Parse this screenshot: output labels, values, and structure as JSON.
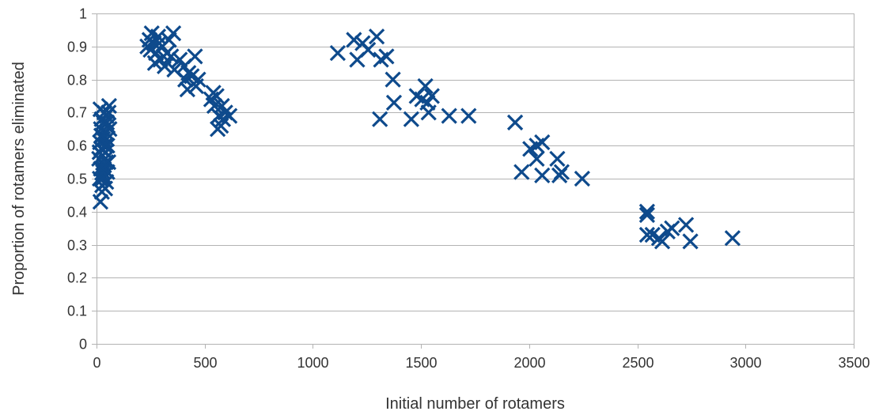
{
  "chart_data": {
    "type": "scatter",
    "title": "",
    "xlabel": "Initial number of rotamers",
    "ylabel": "Proportion of rotamers eliminated",
    "xlim": [
      0,
      3500
    ],
    "ylim": [
      0,
      1
    ],
    "x_ticks": [
      "0",
      "500",
      "1000",
      "1500",
      "2000",
      "2500",
      "3000",
      "3500"
    ],
    "y_ticks": [
      "0",
      "0.1",
      "0.2",
      "0.3",
      "0.4",
      "0.5",
      "0.6",
      "0.7",
      "0.8",
      "0.9",
      "1"
    ],
    "grid": "horizontal",
    "legend": "none",
    "marker": "x",
    "color": "#0e4a8c",
    "series": [
      {
        "points": [
          [
            18,
            0.43
          ],
          [
            25,
            0.46
          ],
          [
            40,
            0.47
          ],
          [
            45,
            0.49
          ],
          [
            15,
            0.5
          ],
          [
            30,
            0.51
          ],
          [
            50,
            0.52
          ],
          [
            20,
            0.53
          ],
          [
            35,
            0.54
          ],
          [
            55,
            0.55
          ],
          [
            12,
            0.56
          ],
          [
            28,
            0.57
          ],
          [
            42,
            0.58
          ],
          [
            22,
            0.59
          ],
          [
            38,
            0.6
          ],
          [
            16,
            0.61
          ],
          [
            48,
            0.62
          ],
          [
            26,
            0.63
          ],
          [
            44,
            0.64
          ],
          [
            20,
            0.65
          ],
          [
            52,
            0.66
          ],
          [
            32,
            0.67
          ],
          [
            24,
            0.68
          ],
          [
            46,
            0.69
          ],
          [
            36,
            0.7
          ],
          [
            18,
            0.71
          ],
          [
            58,
            0.72
          ],
          [
            30,
            0.62
          ],
          [
            40,
            0.56
          ],
          [
            14,
            0.58
          ],
          [
            34,
            0.53
          ],
          [
            50,
            0.6
          ],
          [
            22,
            0.63
          ],
          [
            28,
            0.5
          ],
          [
            44,
            0.55
          ],
          [
            30,
            0.52
          ],
          [
            60,
            0.65
          ],
          [
            56,
            0.7
          ],
          [
            26,
            0.48
          ],
          [
            48,
            0.67
          ],
          [
            235,
            0.9
          ],
          [
            245,
            0.92
          ],
          [
            255,
            0.94
          ],
          [
            265,
            0.91
          ],
          [
            275,
            0.88
          ],
          [
            285,
            0.93
          ],
          [
            295,
            0.86
          ],
          [
            305,
            0.9
          ],
          [
            315,
            0.84
          ],
          [
            325,
            0.88
          ],
          [
            335,
            0.92
          ],
          [
            345,
            0.87
          ],
          [
            355,
            0.94
          ],
          [
            250,
            0.89
          ],
          [
            270,
            0.85
          ],
          [
            290,
            0.91
          ],
          [
            310,
            0.87
          ],
          [
            360,
            0.83
          ],
          [
            385,
            0.86
          ],
          [
            405,
            0.84
          ],
          [
            420,
            0.77
          ],
          [
            440,
            0.81
          ],
          [
            455,
            0.87
          ],
          [
            470,
            0.8
          ],
          [
            425,
            0.82
          ],
          [
            460,
            0.78
          ],
          [
            410,
            0.8
          ],
          [
            545,
            0.72
          ],
          [
            555,
            0.75
          ],
          [
            565,
            0.69
          ],
          [
            575,
            0.66
          ],
          [
            585,
            0.68
          ],
          [
            595,
            0.7
          ],
          [
            615,
            0.69
          ],
          [
            530,
            0.74
          ],
          [
            540,
            0.76
          ],
          [
            560,
            0.65
          ],
          [
            580,
            0.72
          ],
          [
            1115,
            0.88
          ],
          [
            1190,
            0.92
          ],
          [
            1205,
            0.86
          ],
          [
            1230,
            0.91
          ],
          [
            1255,
            0.89
          ],
          [
            1295,
            0.93
          ],
          [
            1315,
            0.86
          ],
          [
            1340,
            0.87
          ],
          [
            1370,
            0.8
          ],
          [
            1375,
            0.73
          ],
          [
            1310,
            0.68
          ],
          [
            1455,
            0.68
          ],
          [
            1480,
            0.75
          ],
          [
            1505,
            0.74
          ],
          [
            1520,
            0.78
          ],
          [
            1535,
            0.7
          ],
          [
            1550,
            0.75
          ],
          [
            1530,
            0.73
          ],
          [
            1630,
            0.69
          ],
          [
            1720,
            0.69
          ],
          [
            1935,
            0.67
          ],
          [
            1965,
            0.52
          ],
          [
            2005,
            0.59
          ],
          [
            2035,
            0.56
          ],
          [
            2035,
            0.6
          ],
          [
            2060,
            0.61
          ],
          [
            2060,
            0.51
          ],
          [
            2130,
            0.56
          ],
          [
            2140,
            0.51
          ],
          [
            2150,
            0.52
          ],
          [
            2245,
            0.5
          ],
          [
            2545,
            0.4
          ],
          [
            2545,
            0.39
          ],
          [
            2545,
            0.33
          ],
          [
            2570,
            0.33
          ],
          [
            2600,
            0.32
          ],
          [
            2615,
            0.31
          ],
          [
            2640,
            0.34
          ],
          [
            2660,
            0.35
          ],
          [
            2725,
            0.36
          ],
          [
            2745,
            0.31
          ],
          [
            2940,
            0.32
          ]
        ]
      }
    ]
  }
}
